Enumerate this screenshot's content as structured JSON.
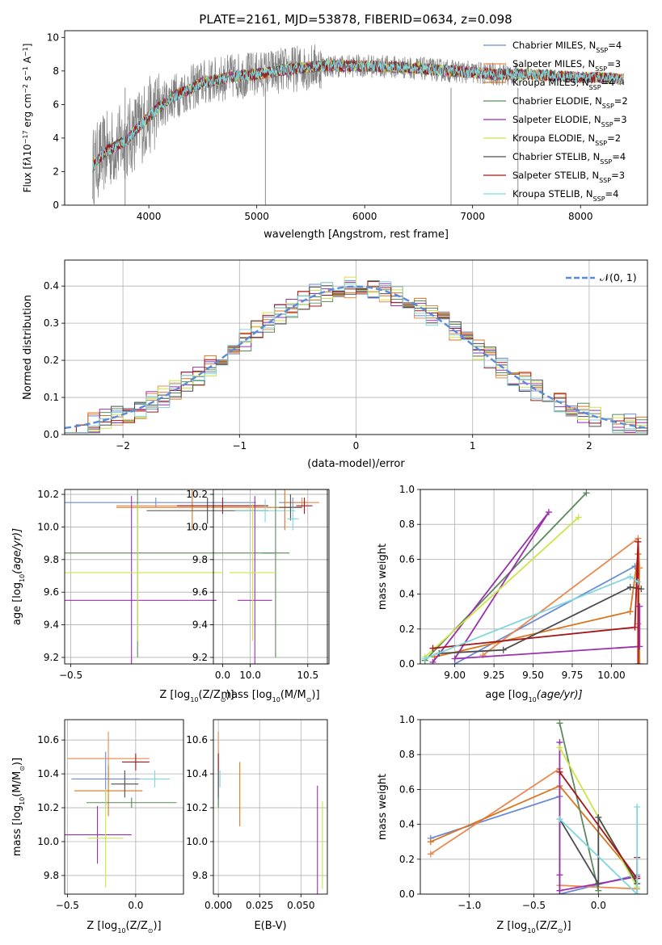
{
  "figure": {
    "title": "PLATE=2161, MJD=53878, FIBERID=0634, z=0.098"
  },
  "models": [
    {
      "name": "Chabrier MILES, N$_{SSP}$=4",
      "label": "Chabrier MILES, N",
      "nssp": "=4",
      "color": "#6a8cd6"
    },
    {
      "name": "Salpeter MILES, N$_{SSP}$=3",
      "label": "Salpeter MILES, N",
      "nssp": "=3",
      "color": "#e8894f"
    },
    {
      "name": "Kroupa MILES, N$_{SSP}$=4",
      "label": "Kroupa MILES, N",
      "nssp": "=4",
      "color": "#d9751d"
    },
    {
      "name": "Chabrier ELODIE, N$_{SSP}$=2",
      "label": "Chabrier ELODIE, N",
      "nssp": "=2",
      "color": "#5b8a5b"
    },
    {
      "name": "Salpeter ELODIE, N$_{SSP}$=3",
      "label": "Salpeter ELODIE, N",
      "nssp": "=3",
      "color": "#9b2fae"
    },
    {
      "name": "Kroupa ELODIE, N$_{SSP}$=2",
      "label": "Kroupa ELODIE, N",
      "nssp": "=2",
      "color": "#cde34a"
    },
    {
      "name": "Chabrier STELIB, N$_{SSP}$=4",
      "label": "Chabrier STELIB, N",
      "nssp": "=4",
      "color": "#4d4d4d"
    },
    {
      "name": "Salpeter STELIB, N$_{SSP}$=3",
      "label": "Salpeter STELIB, N",
      "nssp": "=3",
      "color": "#a4161a"
    },
    {
      "name": "Kroupa STELIB, N$_{SSP}$=4",
      "label": "Kroupa STELIB, N",
      "nssp": "=4",
      "color": "#7fd6dc"
    }
  ],
  "chart_data": [
    {
      "type": "line",
      "panel": "spectrum",
      "xlabel": "wavelength [Angstrom, rest frame]",
      "ylabel_main": "Flux [f",
      "ylabel_rest": "10",
      "ylabel_units": " erg cm",
      "ylabel_s": " s",
      "ylabel_A": " A",
      "xlim": [
        3220,
        8620
      ],
      "ylim": [
        0,
        10.4
      ],
      "xticks": [
        4000,
        5000,
        6000,
        7000,
        8000
      ],
      "yticks": [
        0,
        2,
        4,
        6,
        8,
        10
      ],
      "data_color": "#808080",
      "continuum_x": [
        3480,
        3600,
        3800,
        4000,
        4200,
        4500,
        4800,
        5000,
        5300,
        5600,
        6000,
        6400,
        6800,
        7200,
        7500,
        7800,
        8000,
        8200,
        8400
      ],
      "continuum_y": [
        2.3,
        3.2,
        3.9,
        5.3,
        6.4,
        7.3,
        7.7,
        7.8,
        8.1,
        8.3,
        8.3,
        8.2,
        8.0,
        7.8,
        7.8,
        7.7,
        7.6,
        7.6,
        7.5
      ]
    },
    {
      "type": "bar",
      "panel": "residual_histogram",
      "xlabel": "(data-model)/error",
      "ylabel": "Normed distribution",
      "xlim": [
        -2.5,
        2.5
      ],
      "ylim": [
        0,
        0.47
      ],
      "xticks": [
        -2,
        -1,
        0,
        1,
        2
      ],
      "yticks": [
        0.0,
        0.1,
        0.2,
        0.3,
        0.4
      ],
      "legend": "𝒩(0, 1)",
      "gaussian_color": "#5b8ad6",
      "bin_width": 0.1
    },
    {
      "type": "scatter",
      "panel": "age_vs_Z",
      "xlabel": "Z [log",
      "xlabel_sub": "10",
      "xlabel_rest": "(Z/Z",
      "ylabel": "age  [log",
      "ylabel_sub": "10",
      "ylabel_rest": "(age/yr)]",
      "xlim": [
        -0.52,
        0.35
      ],
      "ylim": [
        9.16,
        10.23
      ],
      "xticks": [
        -0.5,
        0.0
      ],
      "yticks": [
        9.2,
        9.4,
        9.6,
        9.8,
        10.0,
        10.2
      ],
      "points": [
        {
          "x": -0.22,
          "y": 10.15,
          "xerr": 0.33,
          "yerr": 0.03,
          "model": 0
        },
        {
          "x": -0.1,
          "y": 10.13,
          "xerr": 0.25,
          "yerr": 0.02,
          "model": 1
        },
        {
          "x": -0.1,
          "y": 10.12,
          "xerr": 0.25,
          "yerr": 0.14,
          "model": 2
        },
        {
          "x": -0.28,
          "y": 9.84,
          "xerr": 0.45,
          "yerr": 0.64,
          "model": 3
        },
        {
          "x": -0.3,
          "y": 9.55,
          "xerr": 0.28,
          "yerr": 0.64,
          "model": 4
        },
        {
          "x": -0.28,
          "y": 9.72,
          "xerr": 0.28,
          "yerr": 0.42,
          "model": 5
        },
        {
          "x": -0.05,
          "y": 10.1,
          "xerr": 0.2,
          "yerr": 0.08,
          "model": 6
        },
        {
          "x": 0.0,
          "y": 10.13,
          "xerr": 0.15,
          "yerr": 0.05,
          "model": 7
        },
        {
          "x": 0.14,
          "y": 10.1,
          "xerr": 0.1,
          "yerr": 0.07,
          "model": 8
        }
      ]
    },
    {
      "type": "scatter",
      "panel": "age_vs_mass",
      "xlabel": "mass [log",
      "xlabel_sub": "10",
      "xlabel_rest": "(M/M",
      "xlim": [
        9.68,
        10.67
      ],
      "ylim": [
        9.16,
        10.23
      ],
      "xticks": [
        10.0,
        10.5
      ],
      "yticks": [
        9.2,
        9.4,
        9.6,
        9.8,
        10.0,
        10.2
      ],
      "points": [
        {
          "x": 10.37,
          "y": 10.15,
          "xerr": 0.12,
          "yerr": 0.03,
          "model": 0
        },
        {
          "x": 10.45,
          "y": 10.15,
          "xerr": 0.15,
          "yerr": 0.03,
          "model": 1
        },
        {
          "x": 10.3,
          "y": 10.12,
          "xerr": 0.15,
          "yerr": 0.14,
          "model": 2
        },
        {
          "x": 10.22,
          "y": 9.84,
          "xerr": 0.12,
          "yerr": 0.64,
          "model": 3
        },
        {
          "x": 10.04,
          "y": 9.55,
          "xerr": 0.15,
          "yerr": 0.64,
          "model": 4
        },
        {
          "x": 10.02,
          "y": 9.72,
          "xerr": 0.2,
          "yerr": 0.42,
          "model": 5
        },
        {
          "x": 10.35,
          "y": 10.12,
          "xerr": 0.1,
          "yerr": 0.08,
          "model": 6
        },
        {
          "x": 10.47,
          "y": 10.13,
          "xerr": 0.07,
          "yerr": 0.05,
          "model": 7
        },
        {
          "x": 10.37,
          "y": 10.05,
          "xerr": 0.05,
          "yerr": 0.07,
          "model": 8
        }
      ]
    },
    {
      "type": "line",
      "panel": "mass_weight_vs_age",
      "xlabel": "age  [log",
      "xlabel_sub": "10",
      "xlabel_rest": "(age/yr)]",
      "ylabel": "mass weight",
      "xlim": [
        8.78,
        10.23
      ],
      "ylim": [
        0,
        1
      ],
      "xticks": [
        9.0,
        9.25,
        9.5,
        9.75,
        10.0
      ],
      "yticks": [
        0.0,
        0.2,
        0.4,
        0.6,
        0.8,
        1.0
      ],
      "series": [
        {
          "model": 0,
          "x": [
            9.0,
            10.15
          ],
          "y": [
            0.0,
            0.56
          ]
        },
        {
          "model": 1,
          "x": [
            9.18,
            10.17,
            10.18,
            10.17
          ],
          "y": [
            0.05,
            0.72,
            0.55,
            0.23
          ]
        },
        {
          "model": 2,
          "x": [
            8.87,
            10.12,
            10.17,
            10.18
          ],
          "y": [
            0.04,
            0.3,
            0.63,
            0.0
          ]
        },
        {
          "model": 3,
          "x": [
            8.81,
            9.84
          ],
          "y": [
            0.02,
            0.98
          ]
        },
        {
          "model": 4,
          "x": [
            8.86,
            9.6,
            9.0,
            10.18,
            10.18
          ],
          "y": [
            0.01,
            0.87,
            0.03,
            0.1,
            0.33
          ]
        },
        {
          "model": 5,
          "x": [
            8.81,
            9.79
          ],
          "y": [
            0.04,
            0.84
          ]
        },
        {
          "model": 6,
          "x": [
            8.9,
            9.31,
            10.12,
            10.19
          ],
          "y": [
            0.06,
            0.08,
            0.44,
            0.43
          ]
        },
        {
          "model": 7,
          "x": [
            8.86,
            10.15,
            10.17,
            10.17
          ],
          "y": [
            0.09,
            0.21,
            0.7,
            0.0
          ]
        },
        {
          "model": 8,
          "x": [
            8.81,
            10.12,
            10.17
          ],
          "y": [
            0.03,
            0.5,
            0.47
          ]
        }
      ]
    },
    {
      "type": "scatter",
      "panel": "mass_vs_Z",
      "xlabel": "Z [log",
      "xlabel_sub": "10",
      "xlabel_rest": "(Z/Z",
      "ylabel": "mass [log",
      "ylabel_sub": "10",
      "ylabel_rest": "(M/M",
      "xlim": [
        -0.52,
        0.35
      ],
      "ylim": [
        9.69,
        10.72
      ],
      "xticks": [
        -0.5,
        0.0
      ],
      "yticks": [
        9.8,
        10.0,
        10.2,
        10.4,
        10.6
      ],
      "points": [
        {
          "x": -0.22,
          "y": 10.37,
          "xerr": 0.25,
          "yerr": 0.16,
          "model": 0
        },
        {
          "x": -0.2,
          "y": 10.49,
          "xerr": 0.3,
          "yerr": 0.16,
          "model": 1
        },
        {
          "x": -0.2,
          "y": 10.3,
          "xerr": 0.25,
          "yerr": 0.15,
          "model": 2
        },
        {
          "x": -0.03,
          "y": 10.23,
          "xerr": 0.33,
          "yerr": 0.03,
          "model": 3
        },
        {
          "x": -0.28,
          "y": 10.04,
          "xerr": 0.25,
          "yerr": 0.17,
          "model": 4
        },
        {
          "x": -0.22,
          "y": 10.02,
          "xerr": 0.13,
          "yerr": 0.29,
          "model": 5
        },
        {
          "x": -0.08,
          "y": 10.34,
          "xerr": 0.1,
          "yerr": 0.08,
          "model": 6
        },
        {
          "x": 0.0,
          "y": 10.47,
          "xerr": 0.1,
          "yerr": 0.05,
          "model": 7
        },
        {
          "x": 0.14,
          "y": 10.37,
          "xerr": 0.11,
          "yerr": 0.05,
          "model": 8
        }
      ]
    },
    {
      "type": "scatter",
      "panel": "mass_vs_ebv",
      "xlabel": "E(B-V)",
      "xlim": [
        -0.003,
        0.066
      ],
      "ylim": [
        9.69,
        10.72
      ],
      "xticks": [
        0.0,
        0.025,
        0.05
      ],
      "xtick_labels": [
        "0.000",
        "0.025",
        "0.050"
      ],
      "yticks": [
        9.8,
        10.0,
        10.2,
        10.4,
        10.6
      ],
      "points": [
        {
          "x": 0.0,
          "y": 10.37,
          "yerr": 0.16,
          "model": 0
        },
        {
          "x": 0.0,
          "y": 10.49,
          "yerr": 0.16,
          "model": 1
        },
        {
          "x": 0.013,
          "y": 10.28,
          "yerr": 0.19,
          "model": 2
        },
        {
          "x": 0.0,
          "y": 10.23,
          "yerr": 0.03,
          "model": 3
        },
        {
          "x": 0.06,
          "y": 10.0,
          "yerr": 0.33,
          "model": 4
        },
        {
          "x": 0.063,
          "y": 9.98,
          "yerr": 0.26,
          "model": 5
        },
        {
          "x": 0.0,
          "y": 10.34,
          "yerr": 0.08,
          "model": 6
        },
        {
          "x": 0.0,
          "y": 10.47,
          "yerr": 0.05,
          "model": 7
        },
        {
          "x": 0.001,
          "y": 10.37,
          "yerr": 0.05,
          "model": 8
        }
      ]
    },
    {
      "type": "line",
      "panel": "mass_weight_vs_Z",
      "xlabel": "Z [log",
      "xlabel_sub": "10",
      "xlabel_rest": "(Z/Z",
      "ylabel": "mass weight",
      "xlim": [
        -1.38,
        0.38
      ],
      "ylim": [
        0,
        1
      ],
      "xticks": [
        -1.0,
        -0.5,
        0.0
      ],
      "yticks": [
        0.0,
        0.2,
        0.4,
        0.6,
        0.8,
        1.0
      ],
      "series": [
        {
          "model": 0,
          "x": [
            -1.3,
            -0.3,
            -0.3,
            0.3
          ],
          "y": [
            0.32,
            0.56,
            0.0,
            0.11
          ]
        },
        {
          "model": 1,
          "x": [
            -1.3,
            -0.3,
            -0.3,
            0.3
          ],
          "y": [
            0.23,
            0.72,
            0.05,
            0.03
          ]
        },
        {
          "model": 2,
          "x": [
            -1.3,
            -0.3,
            0.3,
            0.3
          ],
          "y": [
            0.3,
            0.62,
            0.09,
            0.0
          ]
        },
        {
          "model": 3,
          "x": [
            -0.3,
            0.0
          ],
          "y": [
            0.98,
            0.02
          ]
        },
        {
          "model": 4,
          "x": [
            -0.3,
            -0.3,
            -0.3,
            0.3
          ],
          "y": [
            0.87,
            0.11,
            0.02,
            0.1
          ]
        },
        {
          "model": 5,
          "x": [
            -0.3,
            0.3
          ],
          "y": [
            0.84,
            0.04
          ]
        },
        {
          "model": 6,
          "x": [
            -0.3,
            0.0,
            0.0,
            0.3
          ],
          "y": [
            0.43,
            0.06,
            0.44,
            0.06
          ]
        },
        {
          "model": 7,
          "x": [
            -0.3,
            0.3,
            0.3
          ],
          "y": [
            0.7,
            0.09,
            0.21
          ]
        },
        {
          "model": 8,
          "x": [
            -0.3,
            0.3,
            0.3
          ],
          "y": [
            0.43,
            0.0,
            0.5
          ]
        }
      ]
    }
  ]
}
